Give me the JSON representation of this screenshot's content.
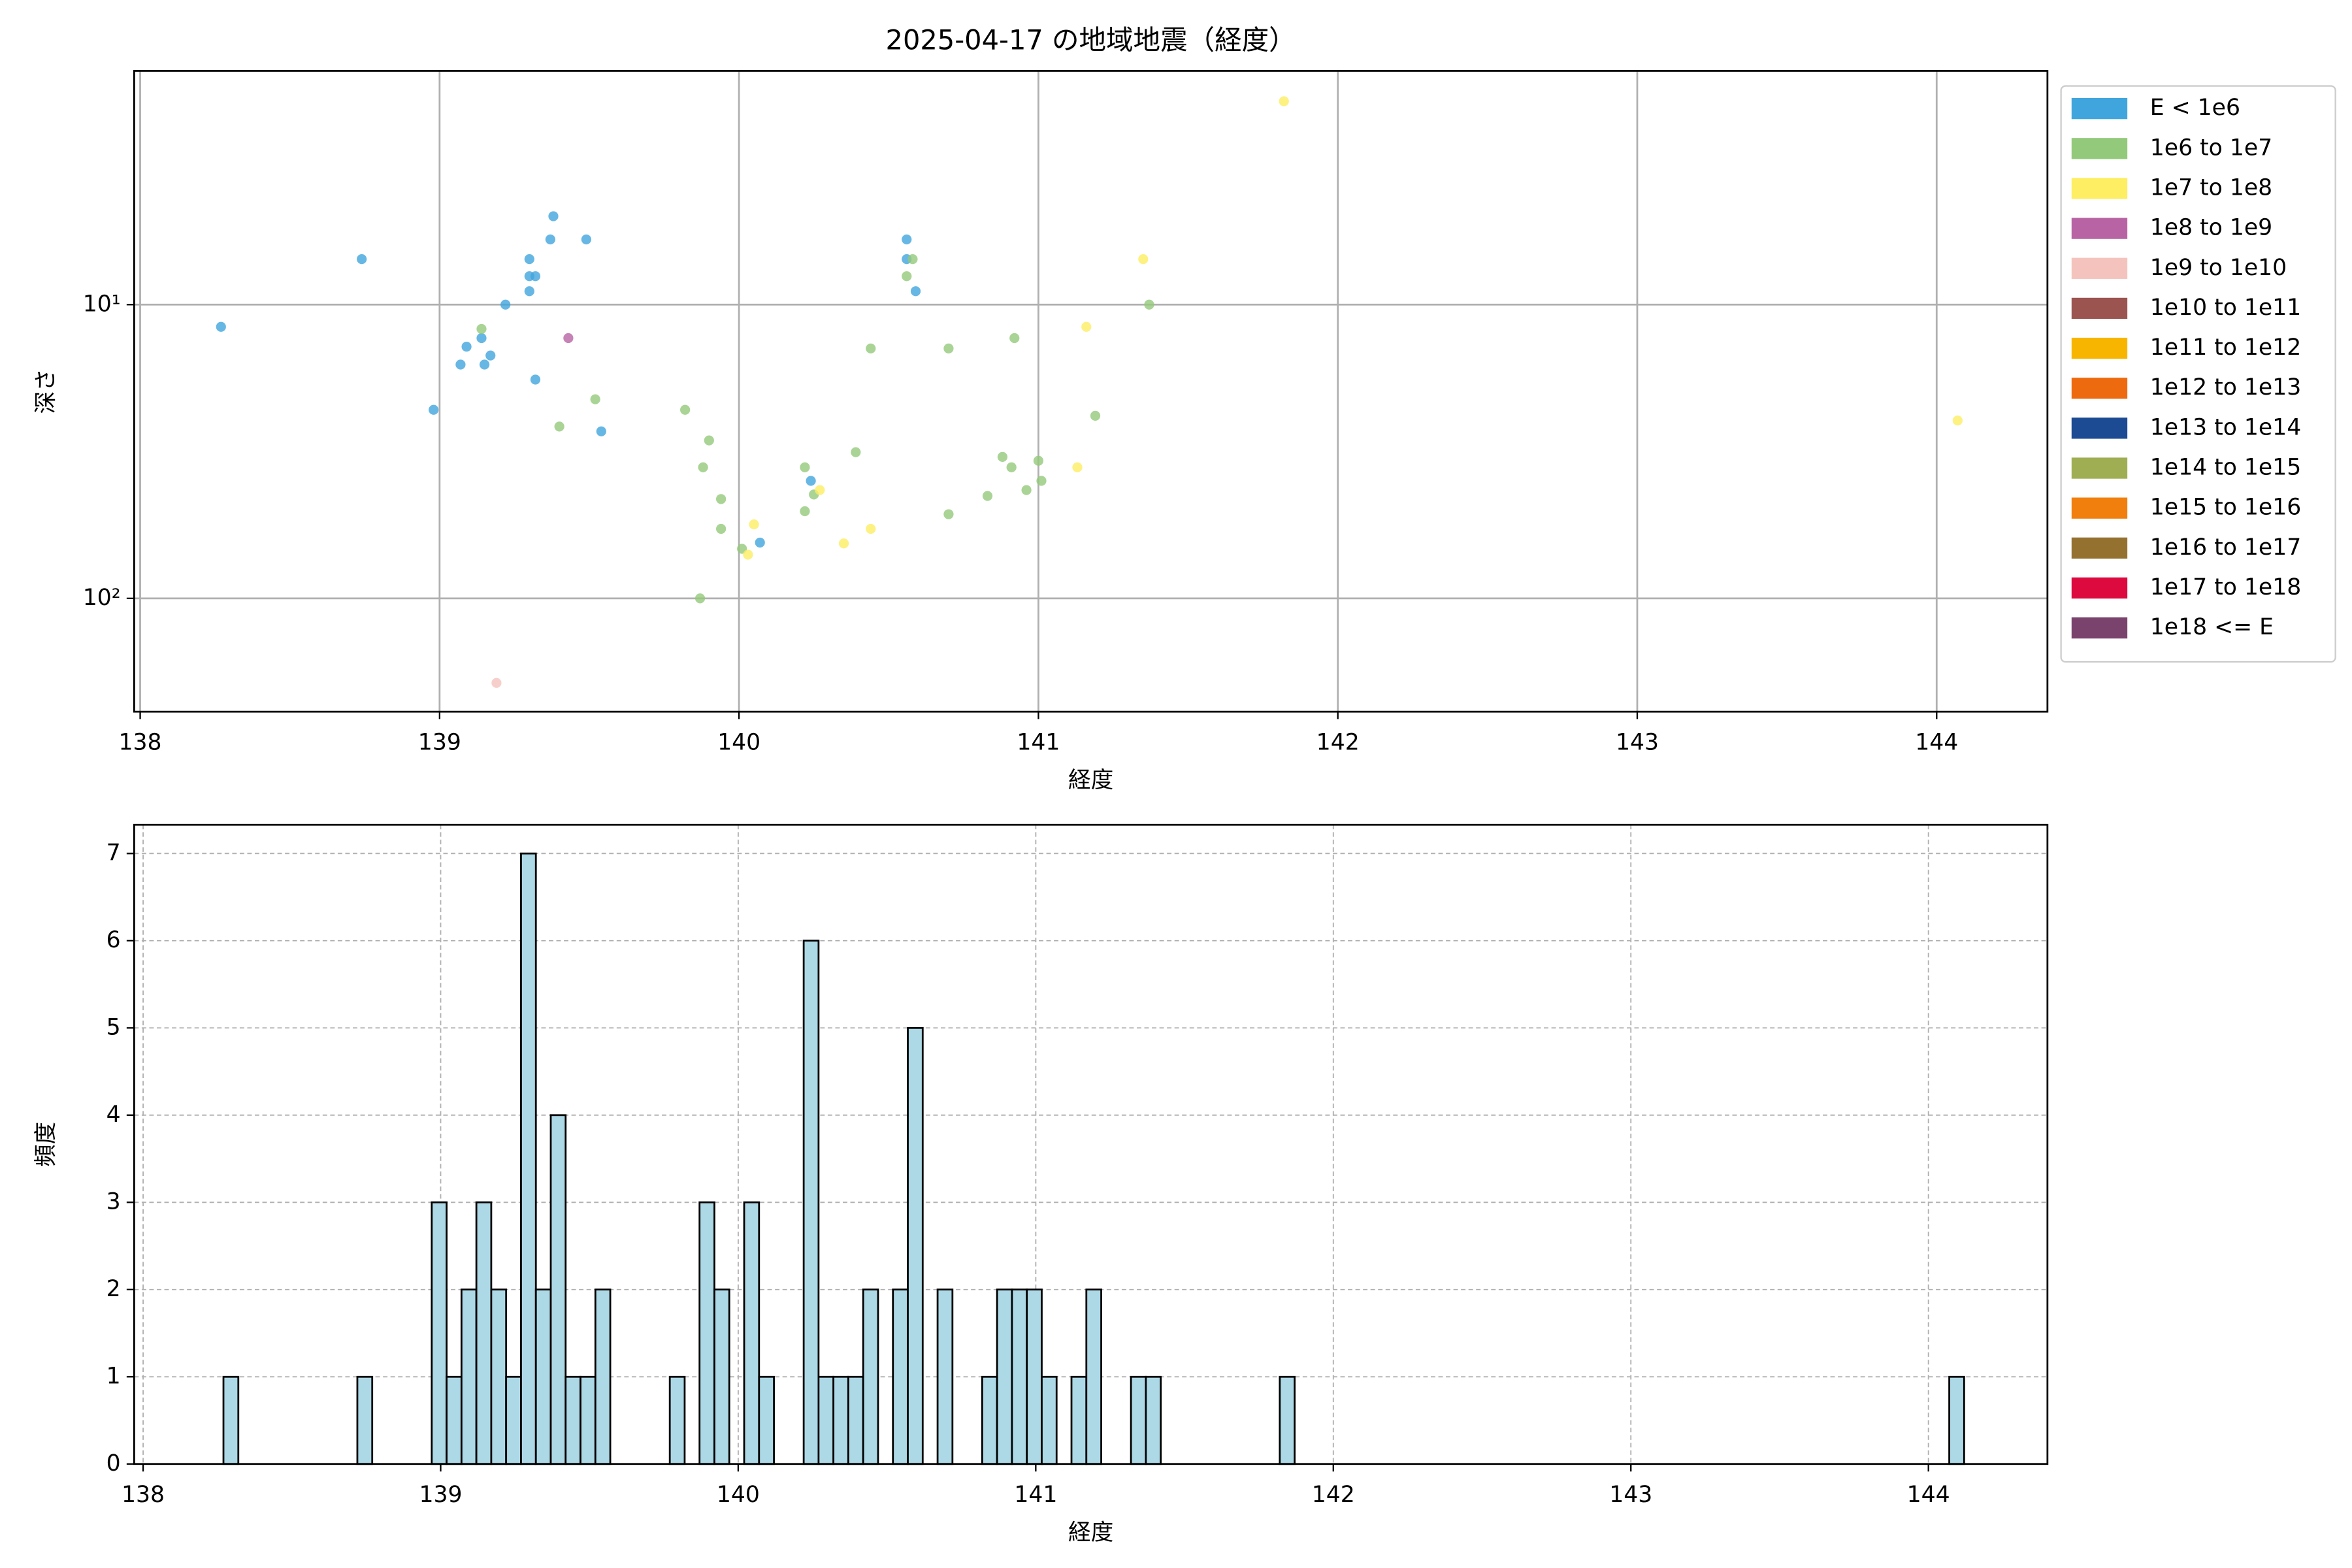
{
  "chart_data": [
    {
      "type": "scatter",
      "title": "2025-04-17 の地域地震（経度）",
      "xlabel": "経度",
      "ylabel": "深さ",
      "xlim": [
        137.98,
        144.37
      ],
      "ylim": [
        1.6,
        243
      ],
      "log_y": true,
      "y_inverted": true,
      "xticks": [
        138,
        139,
        140,
        141,
        142,
        143,
        144
      ],
      "yticks": [
        {
          "value": 10,
          "label": "10¹"
        },
        {
          "value": 100,
          "label": "10²"
        }
      ],
      "grid": true,
      "grid_style": "solid",
      "legend": "outside right",
      "series": [
        {
          "name": "E < 1e6",
          "color": "#41a5dd",
          "x": [
            138.27,
            138.74,
            138.98,
            139.07,
            139.09,
            139.15,
            139.14,
            139.17,
            139.22,
            139.3,
            139.3,
            139.32,
            139.3,
            139.32,
            139.37,
            139.38,
            139.49,
            139.54,
            140.07,
            140.24,
            140.56,
            140.56,
            140.59
          ],
          "values": [
            11.9,
            7.0,
            22.8,
            16.0,
            13.9,
            16.0,
            13.0,
            14.9,
            10,
            9.0,
            8.0,
            8.0,
            7.0,
            18.0,
            6.0,
            5.0,
            6.0,
            27.0,
            64.6,
            39.8,
            6.0,
            7.0,
            9.0
          ]
        },
        {
          "name": "1e6 to 1e7",
          "color": "#93c97a",
          "x": [
            139.14,
            139.4,
            139.52,
            139.82,
            139.9,
            139.88,
            139.94,
            139.94,
            140.01,
            139.87,
            140.22,
            140.22,
            140.25,
            140.39,
            140.44,
            140.56,
            140.58,
            140.7,
            140.7,
            140.83,
            140.88,
            140.91,
            140.92,
            140.96,
            141.0,
            141.01,
            141.19,
            141.37
          ],
          "values": [
            12.1,
            26,
            21,
            22.8,
            29,
            35.8,
            45.9,
            58,
            67.8,
            100,
            35.8,
            50.5,
            44.3,
            31.8,
            14.1,
            8,
            7,
            14.1,
            51.7,
            44.8,
            33,
            35.8,
            13,
            42.8,
            34,
            39.8,
            23.9,
            10
          ]
        },
        {
          "name": "1e7 to 1e8",
          "color": "#fdee63",
          "x": [
            140.05,
            140.03,
            140.27,
            140.35,
            140.44,
            141.13,
            141.16,
            141.35,
            141.82,
            144.07
          ],
          "values": [
            56,
            71,
            42.8,
            65,
            58,
            35.8,
            11.9,
            7,
            2.03,
            24.8
          ]
        },
        {
          "name": "1e8 to 1e9",
          "color": "#b864a4",
          "x": [
            139.43
          ],
          "values": [
            13
          ]
        },
        {
          "name": "1e9 to 1e10",
          "color": "#f5c3bd",
          "x": [
            139.19
          ],
          "values": [
            194
          ]
        },
        {
          "name": "1e10 to 1e11",
          "color": "#9b5450",
          "x": [],
          "values": []
        },
        {
          "name": "1e11 to 1e12",
          "color": "#f7b500",
          "x": [],
          "values": []
        },
        {
          "name": "1e12 to 1e13",
          "color": "#ee6a0e",
          "x": [],
          "values": []
        },
        {
          "name": "1e13 to 1e14",
          "color": "#1c4a93",
          "x": [],
          "values": []
        },
        {
          "name": "1e14 to 1e15",
          "color": "#9fae52",
          "x": [],
          "values": []
        },
        {
          "name": "1e15 to 1e16",
          "color": "#f07f0d",
          "x": [],
          "values": []
        },
        {
          "name": "1e16 to 1e17",
          "color": "#957130",
          "x": [],
          "values": []
        },
        {
          "name": "1e17 to 1e18",
          "color": "#dc0a3f",
          "x": [],
          "values": []
        },
        {
          "name": "1e18 <= E",
          "color": "#7a436e",
          "x": [],
          "values": []
        }
      ]
    },
    {
      "type": "histogram",
      "xlabel": "経度",
      "ylabel": "頻度",
      "xlim": [
        137.97,
        144.4
      ],
      "ylim": [
        0,
        7.33
      ],
      "xticks": [
        138,
        139,
        140,
        141,
        142,
        143,
        144
      ],
      "yticks": [
        0,
        1,
        2,
        3,
        4,
        5,
        6,
        7
      ],
      "grid": true,
      "grid_style": "dashed",
      "color": "#add8e6",
      "edgecolor": "#000000",
      "bins": [
        138.27,
        138.32,
        138.37,
        138.42,
        138.47,
        138.52,
        138.57,
        138.62,
        138.67,
        138.72,
        138.77,
        138.82,
        138.87,
        138.92,
        138.97,
        139.02,
        139.07,
        139.12,
        139.17,
        139.22,
        139.27,
        139.32,
        139.37,
        139.42,
        139.47,
        139.52,
        139.57,
        139.62,
        139.67,
        139.72,
        139.77,
        139.82,
        139.87,
        139.92,
        139.97,
        140.02,
        140.07,
        140.12,
        140.17,
        140.22,
        140.27,
        140.32,
        140.37,
        140.42,
        140.47,
        140.52,
        140.57,
        140.62,
        140.67,
        140.72,
        140.77,
        140.82,
        140.87,
        140.92,
        140.97,
        141.02,
        141.07,
        141.12,
        141.17,
        141.22,
        141.27,
        141.32,
        141.37,
        141.42,
        141.47,
        141.52,
        141.57,
        141.62,
        141.67,
        141.72,
        141.77,
        141.82,
        141.87,
        141.92,
        141.97,
        142.02,
        142.07,
        142.12,
        142.17,
        142.22,
        142.27,
        142.32,
        142.37,
        142.42,
        142.47,
        142.52,
        142.57,
        142.62,
        142.67,
        142.72,
        142.77,
        142.82,
        142.87,
        142.92,
        142.97,
        143.02,
        143.07,
        143.12,
        143.17,
        143.22,
        143.27,
        143.32,
        143.37,
        143.42,
        143.47,
        143.52,
        143.57,
        143.62,
        143.67,
        143.72,
        143.77,
        143.82,
        143.87,
        143.92,
        143.97,
        144.02,
        144.07,
        144.12
      ],
      "values": [
        1,
        0,
        0,
        0,
        0,
        0,
        0,
        0,
        0,
        1,
        0,
        0,
        0,
        0,
        3,
        1,
        2,
        3,
        2,
        1,
        7,
        2,
        4,
        1,
        1,
        2,
        0,
        0,
        0,
        0,
        1,
        0,
        3,
        2,
        0,
        3,
        1,
        0,
        0,
        6,
        1,
        1,
        1,
        2,
        0,
        2,
        5,
        0,
        2,
        0,
        0,
        1,
        2,
        2,
        2,
        1,
        0,
        1,
        2,
        0,
        0,
        1,
        1,
        0,
        0,
        0,
        0,
        0,
        0,
        0,
        0,
        1,
        0,
        0,
        0,
        0,
        0,
        0,
        0,
        0,
        0,
        0,
        0,
        0,
        0,
        0,
        0,
        0,
        0,
        0,
        0,
        0,
        0,
        0,
        0,
        0,
        0,
        0,
        0,
        0,
        0,
        0,
        0,
        0,
        0,
        0,
        0,
        0,
        0,
        0,
        0,
        0,
        0,
        0,
        0,
        0,
        1
      ]
    }
  ]
}
